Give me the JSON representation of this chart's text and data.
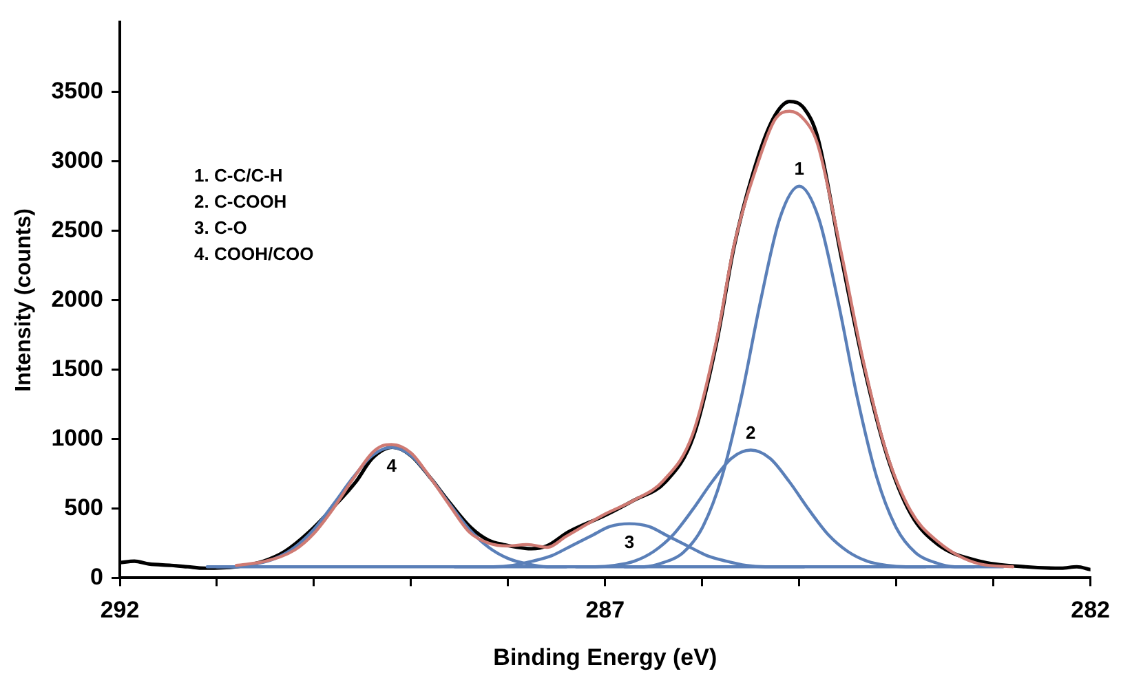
{
  "chart_data": {
    "type": "line",
    "xlabel": "Binding Energy (eV)",
    "ylabel": "Intensity (counts)",
    "xlim": [
      292,
      282
    ],
    "xticks": [
      292,
      {
        "value": 291,
        "label": null
      },
      {
        "value": 290,
        "label": null
      },
      {
        "value": 289,
        "label": null
      },
      {
        "value": 288,
        "label": null
      },
      287,
      {
        "value": 286,
        "label": null
      },
      {
        "value": 285,
        "label": null
      },
      {
        "value": 284,
        "label": null
      },
      {
        "value": 283,
        "label": null
      },
      282
    ],
    "ylim": [
      0,
      4000
    ],
    "yticks": [
      0,
      500,
      1000,
      1500,
      2000,
      2500,
      3000,
      3500
    ],
    "grid": false,
    "legend": false,
    "marker": "none",
    "line_style": "solid",
    "annotations": [
      "1. C-C/C-H",
      "2. C-COOH",
      "3. C-O",
      "4. COOH/COO",
      {
        "text": "1",
        "x": 285.0,
        "y": 2820
      },
      {
        "text": "2",
        "x": 285.5,
        "y": 920
      },
      {
        "text": "3",
        "x": 286.75,
        "y": 390
      },
      {
        "text": "4",
        "x": 289.2,
        "y": 940
      }
    ],
    "series": [
      {
        "color": "#cf7a73",
        "x": [
          290.8,
          290.5,
          290.2,
          290.0,
          289.8,
          289.6,
          289.4,
          289.3,
          289.2,
          289.0,
          288.8,
          288.6,
          288.4,
          288.2,
          288.0,
          287.8,
          287.6,
          287.4,
          287.0,
          286.7,
          286.4,
          286.1,
          285.85,
          285.67,
          285.42,
          285.25,
          285.1,
          284.95,
          284.81,
          284.57,
          284.34,
          284.1,
          283.85,
          283.57,
          283.14,
          282.8
        ],
        "values": [
          90,
          120,
          200,
          320,
          500,
          710,
          900,
          950,
          960,
          900,
          720,
          520,
          330,
          250,
          230,
          240,
          220,
          300,
          460,
          560,
          700,
          1030,
          1720,
          2400,
          3000,
          3300,
          3360,
          3300,
          3120,
          2350,
          1560,
          900,
          480,
          260,
          100,
          80
        ]
      },
      {
        "color": "#5a7fb8",
        "x": [
          291.1,
          282.9
        ],
        "values": [
          80,
          80
        ]
      },
      {
        "color": "#5a7fb8",
        "x": [
          286.8,
          286.6,
          286.4,
          286.2,
          286.0,
          285.8,
          285.6,
          285.4,
          285.2,
          285.0,
          284.8,
          284.6,
          284.4,
          284.2,
          284.0,
          283.8,
          283.6,
          283.4,
          283.2
        ],
        "values": [
          80,
          80,
          110,
          180,
          360,
          720,
          1290,
          1990,
          2590,
          2820,
          2590,
          1990,
          1290,
          720,
          360,
          180,
          110,
          80,
          80
        ]
      },
      {
        "color": "#5a7fb8",
        "x": [
          287.3,
          287.1,
          286.9,
          286.7,
          286.5,
          286.3,
          286.1,
          285.9,
          285.7,
          285.5,
          285.3,
          285.1,
          284.9,
          284.7,
          284.5,
          284.3,
          284.1,
          283.9,
          283.7
        ],
        "values": [
          80,
          80,
          90,
          120,
          190,
          310,
          490,
          690,
          860,
          920,
          860,
          690,
          490,
          310,
          190,
          120,
          90,
          80,
          80
        ]
      },
      {
        "color": "#5a7fb8",
        "x": [
          288.55,
          288.35,
          288.15,
          287.95,
          287.75,
          287.55,
          287.35,
          287.15,
          286.95,
          286.75,
          286.55,
          286.35,
          286.15,
          285.95,
          285.75,
          285.55,
          285.35,
          285.15,
          284.95
        ],
        "values": [
          80,
          80,
          80,
          90,
          120,
          160,
          230,
          300,
          370,
          390,
          370,
          300,
          230,
          160,
          120,
          90,
          80,
          80,
          80
        ]
      },
      {
        "color": "#5a7fb8",
        "x": [
          291.0,
          290.8,
          290.6,
          290.4,
          290.2,
          290.0,
          289.8,
          289.6,
          289.4,
          289.2,
          289.0,
          288.8,
          288.6,
          288.4,
          288.2,
          288.0,
          287.8,
          287.6,
          287.4
        ],
        "values": [
          80,
          80,
          100,
          140,
          220,
          350,
          530,
          720,
          880,
          940,
          880,
          720,
          530,
          350,
          220,
          140,
          100,
          80,
          80
        ]
      },
      {
        "color": "#000000",
        "x": [
          292,
          291.85,
          291.7,
          291.47,
          291.3,
          291.13,
          290.8,
          290.52,
          290.3,
          290.05,
          289.8,
          289.57,
          289.4,
          289.19,
          289.0,
          288.8,
          288.6,
          288.38,
          288.2,
          288.05,
          287.76,
          287.6,
          287.38,
          287.0,
          286.7,
          286.38,
          286.09,
          285.85,
          285.67,
          285.42,
          285.25,
          285.1,
          284.95,
          284.81,
          284.57,
          284.34,
          284.1,
          283.85,
          283.57,
          283.14,
          282.67,
          282.3,
          282.14,
          282
        ],
        "values": [
          110,
          120,
          100,
          90,
          80,
          70,
          80,
          120,
          190,
          330,
          510,
          690,
          860,
          940,
          880,
          720,
          540,
          360,
          270,
          240,
          210,
          230,
          330,
          450,
          560,
          690,
          1020,
          1700,
          2390,
          3040,
          3330,
          3430,
          3380,
          3170,
          2320,
          1540,
          890,
          460,
          240,
          120,
          80,
          70,
          80,
          60
        ]
      }
    ]
  }
}
